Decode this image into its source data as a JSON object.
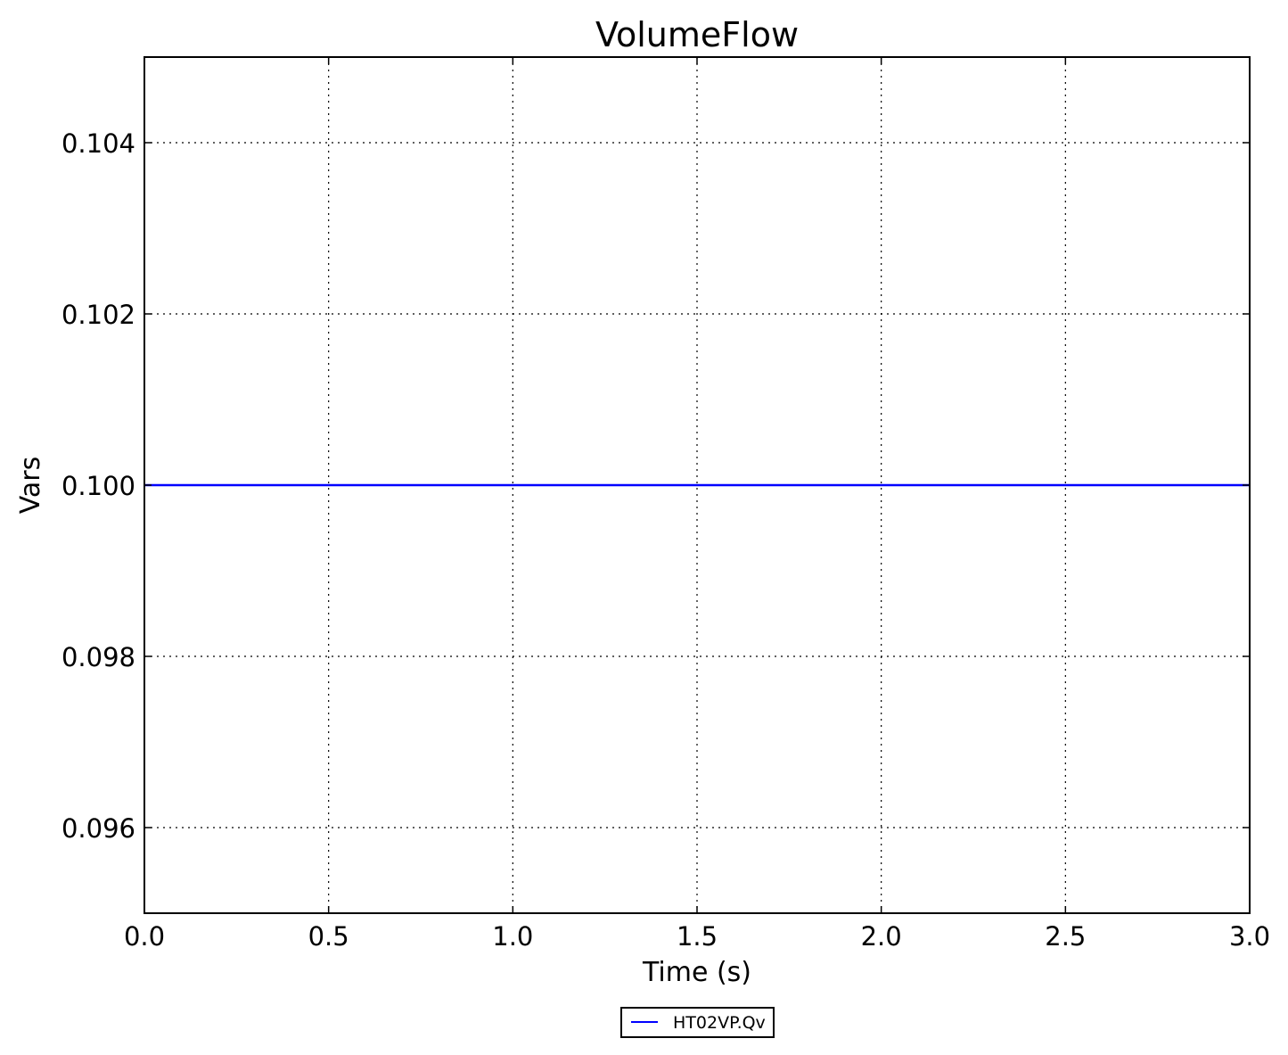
{
  "chart_data": {
    "type": "line",
    "title": "VolumeFlow",
    "xlabel": "Time (s)",
    "ylabel": "Vars",
    "xlim": [
      0.0,
      3.0
    ],
    "ylim": [
      0.095,
      0.105
    ],
    "xticks": [
      "0.0",
      "0.5",
      "1.0",
      "1.5",
      "2.0",
      "2.5",
      "3.0"
    ],
    "xtick_values": [
      0,
      0.5,
      1,
      1.5,
      2,
      2.5,
      3
    ],
    "yticks": [
      "0.096",
      "0.098",
      "0.100",
      "0.102",
      "0.104"
    ],
    "ytick_values": [
      0.096,
      0.098,
      0.1,
      0.102,
      0.104
    ],
    "grid": true,
    "legend_position": "bottom-center-outside",
    "series": [
      {
        "name": "HT02VP.Qv",
        "color": "#0000ff",
        "x": [
          0.0,
          3.0
        ],
        "y": [
          0.1,
          0.1
        ]
      }
    ]
  }
}
